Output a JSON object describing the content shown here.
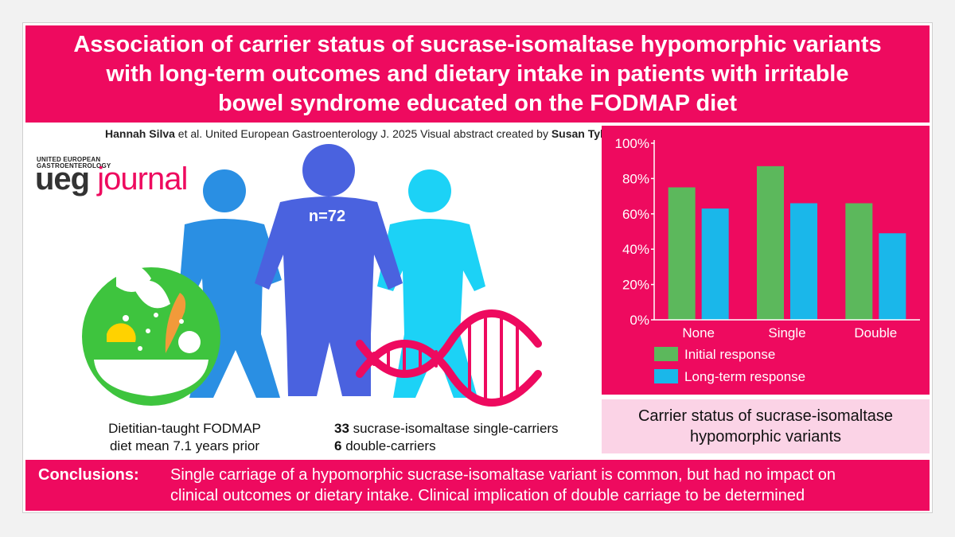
{
  "title": {
    "line1": "Association of carrier status of sucrase-isomaltase hypomorphic variants",
    "line2": "with long-term outcomes and dietary intake in patients with irritable",
    "line3": "bowel syndrome educated on the FODMAP diet"
  },
  "citation": {
    "author": "Hannah Silva",
    "rest": " et al. United European Gastroenterology J. 2025 Visual abstract created by ",
    "creator": "Susan Tyler"
  },
  "logo": {
    "small_line1": "UNITED EUROPEAN",
    "small_line2": "GASTROENTEROLOGY",
    "ueg": "ueg",
    "journal": "journal"
  },
  "illustration": {
    "n_label": "n=72",
    "icons": [
      "salad-bowl-icon",
      "person-icon",
      "dna-icon"
    ]
  },
  "captions": {
    "left_line1": "Dietitian-taught FODMAP",
    "left_line2": "diet mean 7.1 years prior",
    "right_num1": "33",
    "right_text1": " sucrase-isomaltase single-carriers",
    "right_num2": "6",
    "right_text2": " double-carriers"
  },
  "chart_data": {
    "type": "bar",
    "categories": [
      "None",
      "Single",
      "Double"
    ],
    "series": [
      {
        "name": "Initial response",
        "values": [
          75,
          87,
          66
        ],
        "color": "#5cb85c"
      },
      {
        "name": "Long-term response",
        "values": [
          63,
          66,
          49
        ],
        "color": "#1ab7ea"
      }
    ],
    "ylim": [
      0,
      100
    ],
    "yticks": [
      "0%",
      "20%",
      "40%",
      "60%",
      "80%",
      "100%"
    ],
    "xlabel": "Carrier status of sucrase-isomaltase hypomorphic variants",
    "ylabel": "",
    "grid": false,
    "legend_position": "bottom-left"
  },
  "carrier_box": {
    "line1": "Carrier status of sucrase-isomaltase",
    "line2": "hypomorphic variants"
  },
  "conclusions": {
    "label": "Conclusions:",
    "line1": "Single carriage of a hypomorphic sucrase-isomaltase variant is common, but had no impact on",
    "line2": "clinical outcomes or dietary intake. Clinical implication of double carriage to be determined"
  },
  "colors": {
    "magenta": "#ee0a5f",
    "pink_light": "#fbd3e6",
    "green": "#5cb85c",
    "blue": "#1ab7ea"
  }
}
